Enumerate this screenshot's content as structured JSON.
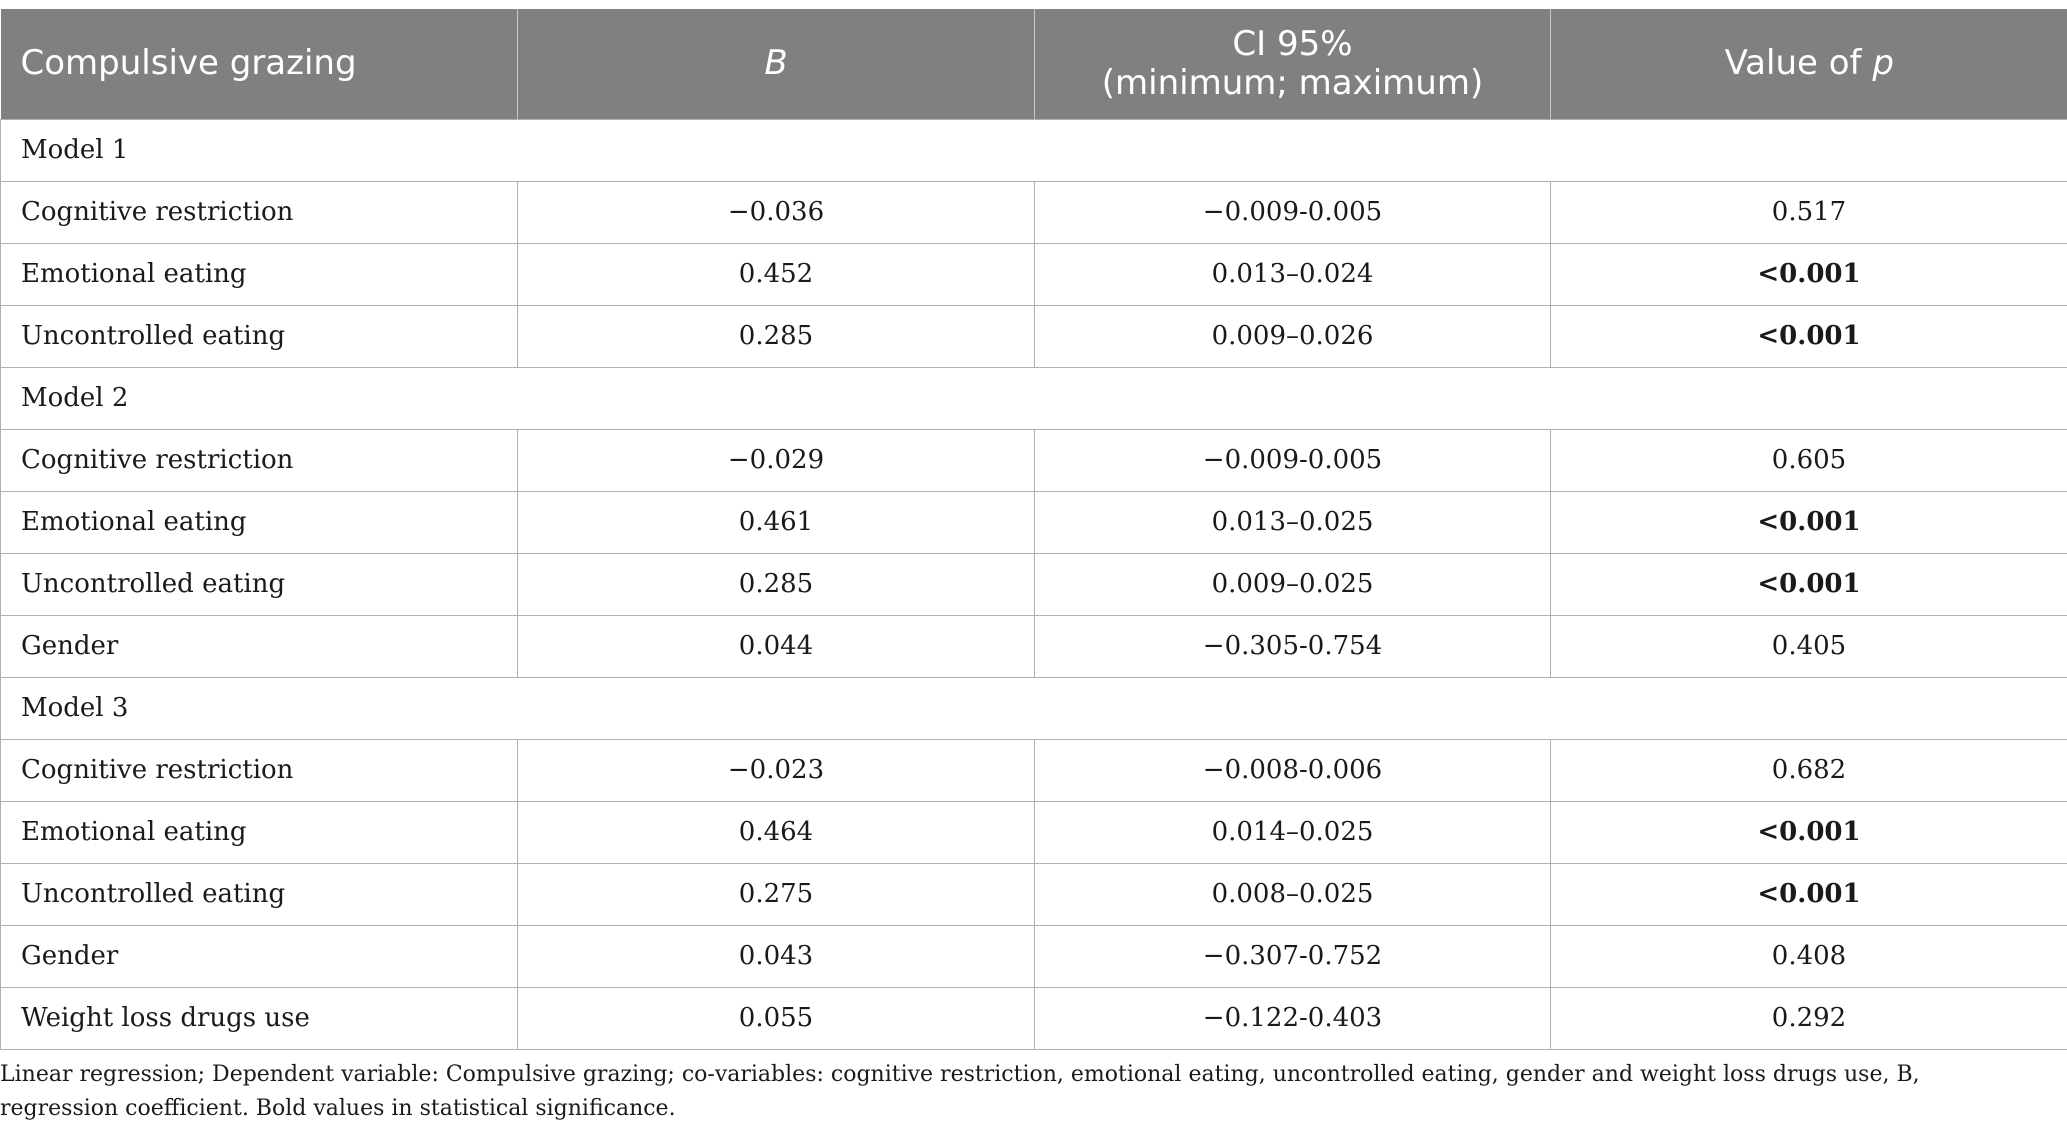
{
  "header": {
    "col1": "Compulsive grazing",
    "col2": "B",
    "col3_line1": "CI 95%",
    "col3_line2": "(minimum; maximum)",
    "col4_prefix": "Value of ",
    "col4_italic": "p"
  },
  "rows": [
    {
      "type": "model",
      "label": "Model 1"
    },
    {
      "type": "data",
      "label": "Cognitive restriction",
      "b": "−0.036",
      "ci": "−0.009-0.005",
      "p": "0.517",
      "sig": false
    },
    {
      "type": "data",
      "label": "Emotional eating",
      "b": "0.452",
      "ci": "0.013–0.024",
      "p": "<0.001",
      "sig": true
    },
    {
      "type": "data",
      "label": "Uncontrolled eating",
      "b": "0.285",
      "ci": "0.009–0.026",
      "p": "<0.001",
      "sig": true
    },
    {
      "type": "model",
      "label": "Model 2"
    },
    {
      "type": "data",
      "label": "Cognitive restriction",
      "b": "−0.029",
      "ci": "−0.009-0.005",
      "p": "0.605",
      "sig": false
    },
    {
      "type": "data",
      "label": "Emotional eating",
      "b": "0.461",
      "ci": "0.013–0.025",
      "p": "<0.001",
      "sig": true
    },
    {
      "type": "data",
      "label": "Uncontrolled eating",
      "b": "0.285",
      "ci": "0.009–0.025",
      "p": "<0.001",
      "sig": true
    },
    {
      "type": "data",
      "label": "Gender",
      "b": "0.044",
      "ci": "−0.305-0.754",
      "p": "0.405",
      "sig": false
    },
    {
      "type": "model",
      "label": "Model 3"
    },
    {
      "type": "data",
      "label": "Cognitive restriction",
      "b": "−0.023",
      "ci": "−0.008-0.006",
      "p": "0.682",
      "sig": false
    },
    {
      "type": "data",
      "label": "Emotional eating",
      "b": "0.464",
      "ci": "0.014–0.025",
      "p": "<0.001",
      "sig": true
    },
    {
      "type": "data",
      "label": "Uncontrolled eating",
      "b": "0.275",
      "ci": "0.008–0.025",
      "p": "<0.001",
      "sig": true
    },
    {
      "type": "data",
      "label": "Gender",
      "b": "0.043",
      "ci": "−0.307-0.752",
      "p": "0.408",
      "sig": false
    },
    {
      "type": "data",
      "label": "Weight loss drugs use",
      "b": "0.055",
      "ci": "−0.122-0.403",
      "p": "0.292",
      "sig": false
    }
  ],
  "footnote": "Linear regression; Dependent variable: Compulsive grazing; co-variables: cognitive restriction, emotional eating, uncontrolled eating, gender and weight loss drugs use, B, regression coefficient. Bold values in statistical significance.",
  "colors": {
    "header_bg": "#808080",
    "header_text": "#ffffff",
    "border": "#b0b0b0"
  }
}
